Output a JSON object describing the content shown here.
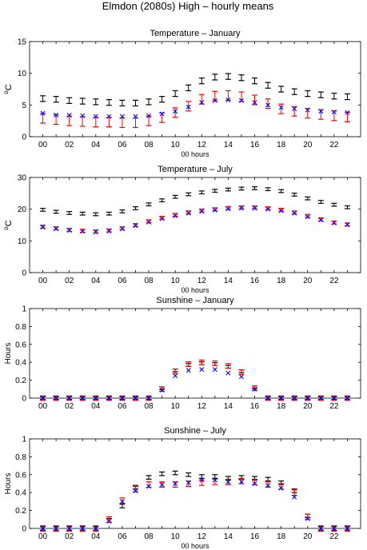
{
  "figure_title": "Elmdon (2080s) High – hourly means",
  "colors": {
    "black": "#000000",
    "red": "#ff0000",
    "blue": "#0000ff"
  },
  "chart_data": [
    {
      "type": "scatter",
      "title": "Temperature – January",
      "xlabel": "00 hours",
      "ylabel": "oC",
      "ylabel_main": "C",
      "ylabel_sup": "o",
      "ylim": [
        0,
        15
      ],
      "yticks": [
        0,
        5,
        10,
        15
      ],
      "xticks": [
        "00",
        "02",
        "04",
        "06",
        "08",
        "10",
        "12",
        "14",
        "16",
        "18",
        "20",
        "22"
      ],
      "x": [
        0,
        1,
        2,
        3,
        4,
        5,
        6,
        7,
        8,
        9,
        10,
        11,
        12,
        13,
        14,
        15,
        16,
        17,
        18,
        19,
        20,
        21,
        22,
        23
      ],
      "series": [
        {
          "color": "black",
          "marker": "errorbar",
          "err": 0.45,
          "values": [
            6.0,
            5.9,
            5.7,
            5.6,
            5.5,
            5.4,
            5.3,
            5.3,
            5.5,
            5.9,
            6.8,
            7.7,
            8.8,
            9.4,
            9.5,
            9.3,
            8.8,
            8.1,
            7.5,
            7.1,
            6.8,
            6.6,
            6.4,
            6.3
          ]
        },
        {
          "color": "red",
          "marker": "errorbar",
          "err": 0.75,
          "values": [
            2.9,
            2.7,
            2.5,
            2.4,
            2.3,
            2.3,
            2.2,
            2.2,
            2.5,
            3.0,
            3.8,
            4.8,
            5.9,
            6.4,
            6.5,
            6.3,
            5.8,
            5.2,
            4.4,
            4.0,
            3.7,
            3.5,
            3.3,
            3.1
          ]
        },
        {
          "color": "blue",
          "marker": "x",
          "values": [
            3.7,
            3.4,
            3.4,
            3.3,
            3.2,
            3.2,
            3.2,
            3.2,
            3.3,
            3.6,
            4.0,
            4.7,
            5.4,
            5.7,
            5.8,
            5.7,
            5.4,
            5.0,
            4.6,
            4.4,
            4.2,
            4.0,
            3.9,
            3.8
          ]
        }
      ]
    },
    {
      "type": "scatter",
      "title": "Temperature – July",
      "xlabel": "00 hours",
      "ylabel": "oC",
      "ylabel_main": "C",
      "ylabel_sup": "o",
      "ylim": [
        0,
        30
      ],
      "yticks": [
        0,
        10,
        20,
        30
      ],
      "xticks": [
        "00",
        "02",
        "04",
        "06",
        "08",
        "10",
        "12",
        "14",
        "16",
        "18",
        "20",
        "22"
      ],
      "x": [
        0,
        1,
        2,
        3,
        4,
        5,
        6,
        7,
        8,
        9,
        10,
        11,
        12,
        13,
        14,
        15,
        16,
        17,
        18,
        19,
        20,
        21,
        22,
        23
      ],
      "series": [
        {
          "color": "black",
          "marker": "errorbar",
          "err": 0.45,
          "values": [
            19.8,
            19.2,
            18.8,
            18.6,
            18.4,
            18.6,
            19.3,
            20.3,
            21.5,
            22.8,
            23.9,
            24.7,
            25.3,
            25.8,
            26.2,
            26.5,
            26.6,
            26.3,
            25.7,
            24.6,
            23.4,
            22.3,
            21.4,
            20.6
          ]
        },
        {
          "color": "red",
          "marker": "errorbar",
          "err": 0.45,
          "values": [
            14.5,
            14.0,
            13.5,
            13.2,
            13.0,
            13.3,
            14.0,
            15.0,
            16.2,
            17.3,
            18.2,
            19.0,
            19.6,
            20.0,
            20.4,
            20.6,
            20.6,
            20.3,
            19.8,
            19.0,
            17.9,
            16.8,
            15.8,
            15.2
          ]
        },
        {
          "color": "blue",
          "marker": "x",
          "values": [
            14.3,
            13.8,
            13.3,
            13.0,
            12.8,
            13.1,
            13.8,
            14.8,
            15.9,
            17.0,
            17.9,
            18.7,
            19.3,
            19.7,
            20.1,
            20.3,
            20.3,
            20.0,
            19.5,
            18.7,
            17.6,
            16.6,
            15.7,
            15.1
          ]
        }
      ]
    },
    {
      "type": "scatter",
      "title": "Sunshine – January",
      "xlabel": "",
      "ylabel": "Hours",
      "ylim": [
        0,
        1
      ],
      "yticks": [
        0,
        0.2,
        0.4,
        0.6,
        0.8,
        1
      ],
      "xticks": [
        "00",
        "02",
        "04",
        "06",
        "08",
        "10",
        "12",
        "14",
        "16",
        "18",
        "20",
        "22"
      ],
      "x": [
        0,
        1,
        2,
        3,
        4,
        5,
        6,
        7,
        8,
        9,
        10,
        11,
        12,
        13,
        14,
        15,
        16,
        17,
        18,
        19,
        20,
        21,
        22,
        23
      ],
      "series": [
        {
          "color": "black",
          "marker": "errorbar",
          "err": 0.015,
          "values": [
            0,
            0,
            0,
            0,
            0,
            0,
            0,
            0,
            0,
            0.11,
            0.31,
            0.37,
            0.39,
            0.38,
            0.35,
            0.3,
            0.12,
            0,
            0,
            0,
            0,
            0,
            0,
            0
          ]
        },
        {
          "color": "red",
          "marker": "errorbar",
          "err": 0.025,
          "values": [
            0,
            0,
            0,
            0,
            0,
            0,
            0,
            0,
            0,
            0.1,
            0.3,
            0.38,
            0.4,
            0.39,
            0.36,
            0.29,
            0.11,
            0,
            0,
            0,
            0,
            0,
            0,
            0
          ]
        },
        {
          "color": "blue",
          "marker": "x",
          "values": [
            0,
            0,
            0,
            0,
            0,
            0,
            0,
            0,
            0,
            0.09,
            0.25,
            0.31,
            0.32,
            0.32,
            0.28,
            0.24,
            0.1,
            0,
            0,
            0,
            0,
            0,
            0,
            0
          ]
        }
      ]
    },
    {
      "type": "scatter",
      "title": "Sunshine – July",
      "xlabel": "00 hours",
      "ylabel": "Hours",
      "ylim": [
        0,
        1
      ],
      "yticks": [
        0,
        0.2,
        0.4,
        0.6,
        0.8,
        1
      ],
      "xticks": [
        "00",
        "02",
        "04",
        "06",
        "08",
        "10",
        "12",
        "14",
        "16",
        "18",
        "20",
        "22"
      ],
      "x": [
        0,
        1,
        2,
        3,
        4,
        5,
        6,
        7,
        8,
        9,
        10,
        11,
        12,
        13,
        14,
        15,
        16,
        17,
        18,
        19,
        20,
        21,
        22,
        23
      ],
      "series": [
        {
          "color": "black",
          "marker": "errorbar",
          "err": 0.02,
          "values": [
            0,
            0,
            0,
            0,
            0,
            0.09,
            0.25,
            0.46,
            0.57,
            0.61,
            0.62,
            0.6,
            0.58,
            0.58,
            0.56,
            0.57,
            0.56,
            0.55,
            0.51,
            0.42,
            0.14,
            0,
            0,
            0
          ]
        },
        {
          "color": "red",
          "marker": "errorbar",
          "err": 0.03,
          "values": [
            0,
            0,
            0,
            0,
            0,
            0.1,
            0.31,
            0.44,
            0.49,
            0.49,
            0.49,
            0.5,
            0.51,
            0.52,
            0.52,
            0.53,
            0.52,
            0.49,
            0.47,
            0.4,
            0.13,
            0,
            0,
            0
          ]
        },
        {
          "color": "blue",
          "marker": "x",
          "values": [
            0,
            0,
            0,
            0,
            0,
            0.08,
            0.3,
            0.42,
            0.47,
            0.49,
            0.5,
            0.51,
            0.54,
            0.54,
            0.52,
            0.52,
            0.5,
            0.48,
            0.45,
            0.35,
            0.11,
            0,
            0,
            0
          ]
        }
      ]
    }
  ]
}
